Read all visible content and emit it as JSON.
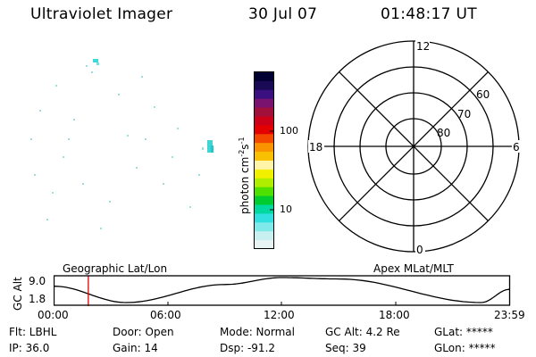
{
  "header": {
    "title": "Ultraviolet Imager",
    "date": "30 Jul 07",
    "time": "01:48:17 UT"
  },
  "colorbar": {
    "unit_label": "photon cm",
    "unit_exp1": "-2",
    "unit_mid": "s",
    "unit_exp2": "-1",
    "tick_labels": [
      "100",
      "10"
    ],
    "colors": [
      "#000033",
      "#1a0a55",
      "#3a0f80",
      "#7a1370",
      "#a0103a",
      "#cc0018",
      "#e40000",
      "#f24800",
      "#f99400",
      "#f8c000",
      "#fff4a8",
      "#f0f000",
      "#b0ee00",
      "#50e000",
      "#00cc30",
      "#00d8a0",
      "#30e0e0",
      "#80eaea",
      "#c8f0f0",
      "#e8f4f4"
    ]
  },
  "polar_plot": {
    "lat_labels": [
      "60",
      "70",
      "80"
    ],
    "mlt_labels": {
      "top": "12",
      "bottom": "0",
      "left": "18",
      "right": "6"
    }
  },
  "altitude_plot": {
    "left_title": "Geographic Lat/Lon",
    "right_title": "Apex MLat/MLT",
    "ylabel": "GC Alt",
    "y_ticks": [
      "9.0",
      "1.8"
    ],
    "x_ticks": [
      "00:00",
      "06:00",
      "12:00",
      "18:00",
      "23:59"
    ],
    "current_time_hours": 1.805,
    "curve_hours": [
      0,
      3.8,
      9,
      12,
      15,
      22.5,
      23.99
    ],
    "curve_alt_re": [
      6.5,
      1.8,
      7.0,
      9.0,
      8.6,
      1.8,
      5.6
    ],
    "y_range": [
      1.8,
      9.0
    ],
    "x_range_hours": [
      0,
      24
    ]
  },
  "info": {
    "flt": "Flt: LBHL",
    "ip": "IP: 36.0",
    "door": "Door: Open",
    "gain": "Gain: 14",
    "mode": "Mode: Normal",
    "dsp": "Dsp:  -91.2",
    "gc_alt": "GC Alt: 4.2 Re",
    "seq": "Seq: 39",
    "glat": "GLat: *****",
    "glon": "GLon: *****"
  }
}
